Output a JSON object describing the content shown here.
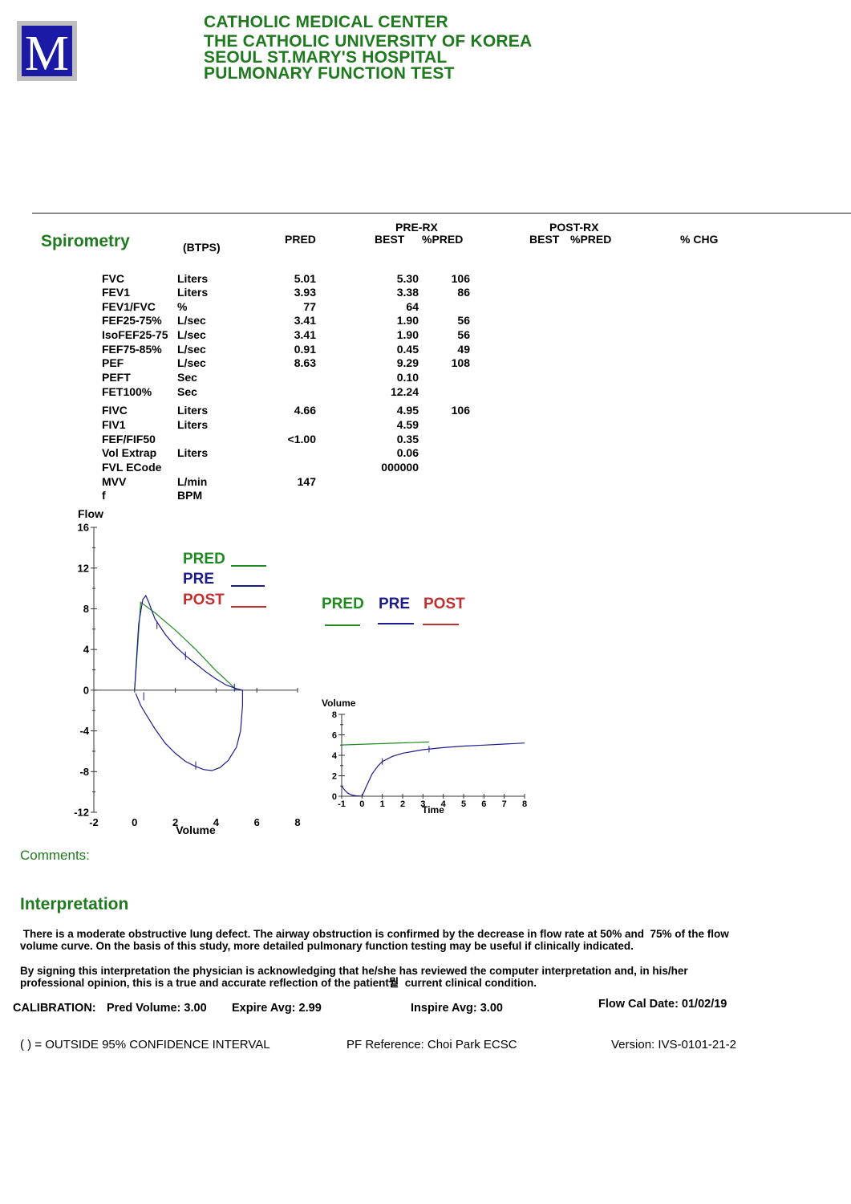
{
  "header": {
    "logo_letter": "M",
    "lines": [
      "CATHOLIC MEDICAL CENTER",
      "THE CATHOLIC UNIVERSITY OF KOREA",
      "SEOUL ST.MARY'S HOSPITAL",
      "PULMONARY FUNCTION TEST"
    ]
  },
  "spirometry": {
    "title": "Spirometry",
    "btps": "(BTPS)",
    "col_pred": "PRED",
    "pre_rx": "PRE-RX",
    "pre_best": "BEST",
    "pre_pctpred": "%PRED",
    "post_rx": "POST-RX",
    "post_best": "BEST",
    "post_pctpred": "%PRED",
    "pct_chg": "% CHG",
    "rows": [
      {
        "name": "FVC",
        "unit": "Liters",
        "pred": "5.01",
        "best": "5.30",
        "pct": "106"
      },
      {
        "name": "FEV1",
        "unit": "Liters",
        "pred": "3.93",
        "best": "3.38",
        "pct": "86"
      },
      {
        "name": "FEV1/FVC",
        "unit": "%",
        "pred": "77",
        "best": "64",
        "pct": ""
      },
      {
        "name": "FEF25-75%",
        "unit": "L/sec",
        "pred": "3.41",
        "best": "1.90",
        "pct": "56"
      },
      {
        "name": "IsoFEF25-75",
        "unit": "L/sec",
        "pred": "3.41",
        "best": "1.90",
        "pct": "56"
      },
      {
        "name": "FEF75-85%",
        "unit": "L/sec",
        "pred": "0.91",
        "best": "0.45",
        "pct": "49"
      },
      {
        "name": "PEF",
        "unit": "L/sec",
        "pred": "8.63",
        "best": "9.29",
        "pct": "108"
      },
      {
        "name": "PEFT",
        "unit": "Sec",
        "pred": "",
        "best": "0.10",
        "pct": ""
      },
      {
        "name": "FET100%",
        "unit": "Sec",
        "pred": "",
        "best": "12.24",
        "pct": ""
      },
      {
        "name": "FIVC",
        "unit": "Liters",
        "pred": "4.66",
        "best": "4.95",
        "pct": "106"
      },
      {
        "name": "FIV1",
        "unit": "Liters",
        "pred": "",
        "best": "4.59",
        "pct": ""
      },
      {
        "name": "FEF/FIF50",
        "unit": "",
        "pred": "<1.00",
        "best": "0.35",
        "pct": ""
      },
      {
        "name": "Vol Extrap",
        "unit": "Liters",
        "pred": "",
        "best": "0.06",
        "pct": ""
      },
      {
        "name": "FVL ECode",
        "unit": "",
        "pred": "",
        "best": "000000",
        "pct": ""
      },
      {
        "name": "MVV",
        "unit": "L/min",
        "pred": "147",
        "best": "",
        "pct": ""
      },
      {
        "name": "f",
        "unit": "BPM",
        "pred": "",
        "best": "",
        "pct": ""
      }
    ]
  },
  "legend": {
    "pred": "PRED",
    "pre": "PRE",
    "post": "POST"
  },
  "legend2": {
    "pred": "PRED",
    "pre": "PRE",
    "post": "POST"
  },
  "colors": {
    "pred": "#1f8a1f",
    "pre": "#1c1c8c",
    "post": "#c03030",
    "header_green": "#1f7a1f"
  },
  "chart_data": [
    {
      "type": "line",
      "title": "",
      "xlabel": "Volume",
      "ylabel": "Flow",
      "xlim": [
        -2,
        8
      ],
      "ylim": [
        -12,
        16
      ],
      "xticks": [
        "-2",
        "0",
        "2",
        "4",
        "6",
        "8"
      ],
      "yticks": [
        "16",
        "12",
        "8",
        "4",
        "0",
        "-4",
        "-8",
        "-12"
      ],
      "series": [
        {
          "name": "PRED",
          "x": [
            0,
            0.3,
            1.0,
            2.0,
            3.0,
            4.0,
            4.6,
            5.01
          ],
          "y": [
            0,
            8.63,
            7.6,
            5.9,
            4.0,
            1.9,
            0.8,
            0
          ]
        },
        {
          "name": "PRE",
          "x": [
            0,
            0.2,
            0.4,
            0.55,
            0.7,
            1.0,
            1.5,
            2.0,
            2.5,
            3.0,
            3.5,
            4.0,
            4.5,
            5.0,
            5.3,
            5.3,
            5.2,
            5.0,
            4.6,
            4.2,
            3.8,
            3.4,
            3.0,
            2.5,
            2.0,
            1.5,
            1.0,
            0.6,
            0.3,
            0.05
          ],
          "y": [
            0,
            6.5,
            8.9,
            9.29,
            8.6,
            7.0,
            5.5,
            4.3,
            3.4,
            2.6,
            1.8,
            1.1,
            0.5,
            0.15,
            0,
            -1.5,
            -4.0,
            -5.6,
            -6.9,
            -7.6,
            -7.9,
            -7.8,
            -7.5,
            -7.0,
            -6.2,
            -5.2,
            -3.8,
            -2.5,
            -1.5,
            -0.3
          ]
        }
      ]
    },
    {
      "type": "line",
      "title": "",
      "xlabel": "Time",
      "ylabel": "Volume",
      "xlim": [
        -1,
        8
      ],
      "ylim": [
        0,
        8
      ],
      "xticks": [
        "-1",
        "0",
        "1",
        "2",
        "3",
        "4",
        "5",
        "6",
        "7",
        "8"
      ],
      "yticks": [
        "8",
        "6",
        "4",
        "2",
        "0"
      ],
      "series": [
        {
          "name": "PRE",
          "x": [
            -1,
            -0.85,
            -0.7,
            -0.5,
            -0.3,
            -0.1,
            0,
            0.2,
            0.5,
            0.8,
            1.0,
            1.5,
            2.0,
            3.0,
            4.0,
            5.0,
            6.0,
            7.0,
            8.0
          ],
          "y": [
            1.0,
            0.6,
            0.3,
            0.12,
            0.05,
            0.02,
            0,
            0.9,
            2.2,
            3.0,
            3.4,
            3.9,
            4.2,
            4.55,
            4.75,
            4.9,
            5.0,
            5.1,
            5.2
          ]
        },
        {
          "name": "PRED",
          "x": [
            -1,
            3.3
          ],
          "y": [
            5.01,
            5.3
          ]
        }
      ]
    }
  ],
  "flow_label": "Flow",
  "volume_label": "Volume",
  "comments_label": "Comments:",
  "interpretation_title": "Interpretation",
  "interp_p1_l1": " There is a moderate obstructive lung defect. The airway obstruction is confirmed by the decrease in flow rate at 50% and  75% of the flow",
  "interp_p1_l2": "volume curve. On the basis of this study, more detailed pulmonary function testing may be useful if clinically indicated.",
  "interp_p2_l1": "By signing this interpretation the physician is acknowledging that he/she has reviewed the computer interpretation and, in his/her",
  "interp_p2_l2": "professional opinion, this is a true and accurate reflection of the patient뭩  current clinical condition.",
  "calibration": {
    "label": "CALIBRATION:",
    "pred_volume": "Pred Volume:  3.00",
    "expire_avg": "Expire Avg:  2.99",
    "inspire_avg": "Inspire Avg:  3.00",
    "flow_cal_date": "Flow Cal Date: 01/02/19"
  },
  "footer": {
    "confidence": "( ) = OUTSIDE  95% CONFIDENCE INTERVAL",
    "reference": "PF Reference: Choi Park ECSC",
    "version": "Version: IVS-0101-21-2"
  }
}
